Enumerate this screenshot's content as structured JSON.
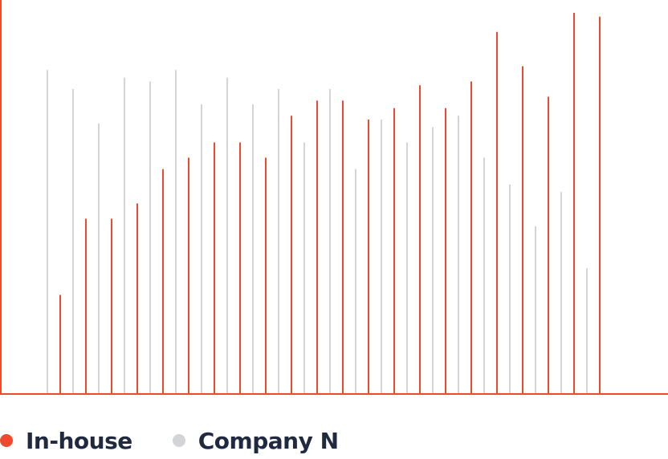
{
  "chart_data": {
    "type": "bar",
    "ylim": [
      0,
      100
    ],
    "grid": false,
    "legend_position": "bottom-left",
    "series": [
      {
        "name": "In-house",
        "color": "#f04a2c",
        "values": [
          26,
          46,
          46,
          50,
          59,
          62,
          66,
          66,
          62,
          73,
          77,
          77,
          72,
          75,
          81,
          75,
          82,
          95,
          86,
          78,
          100,
          99
        ]
      },
      {
        "name": "Company N",
        "color": "#d3d4d8",
        "values": [
          85,
          80,
          71,
          83,
          82,
          85,
          76,
          83,
          76,
          80,
          66,
          80,
          59,
          72,
          66,
          70,
          73,
          62,
          55,
          44,
          53,
          33
        ]
      }
    ]
  }
}
